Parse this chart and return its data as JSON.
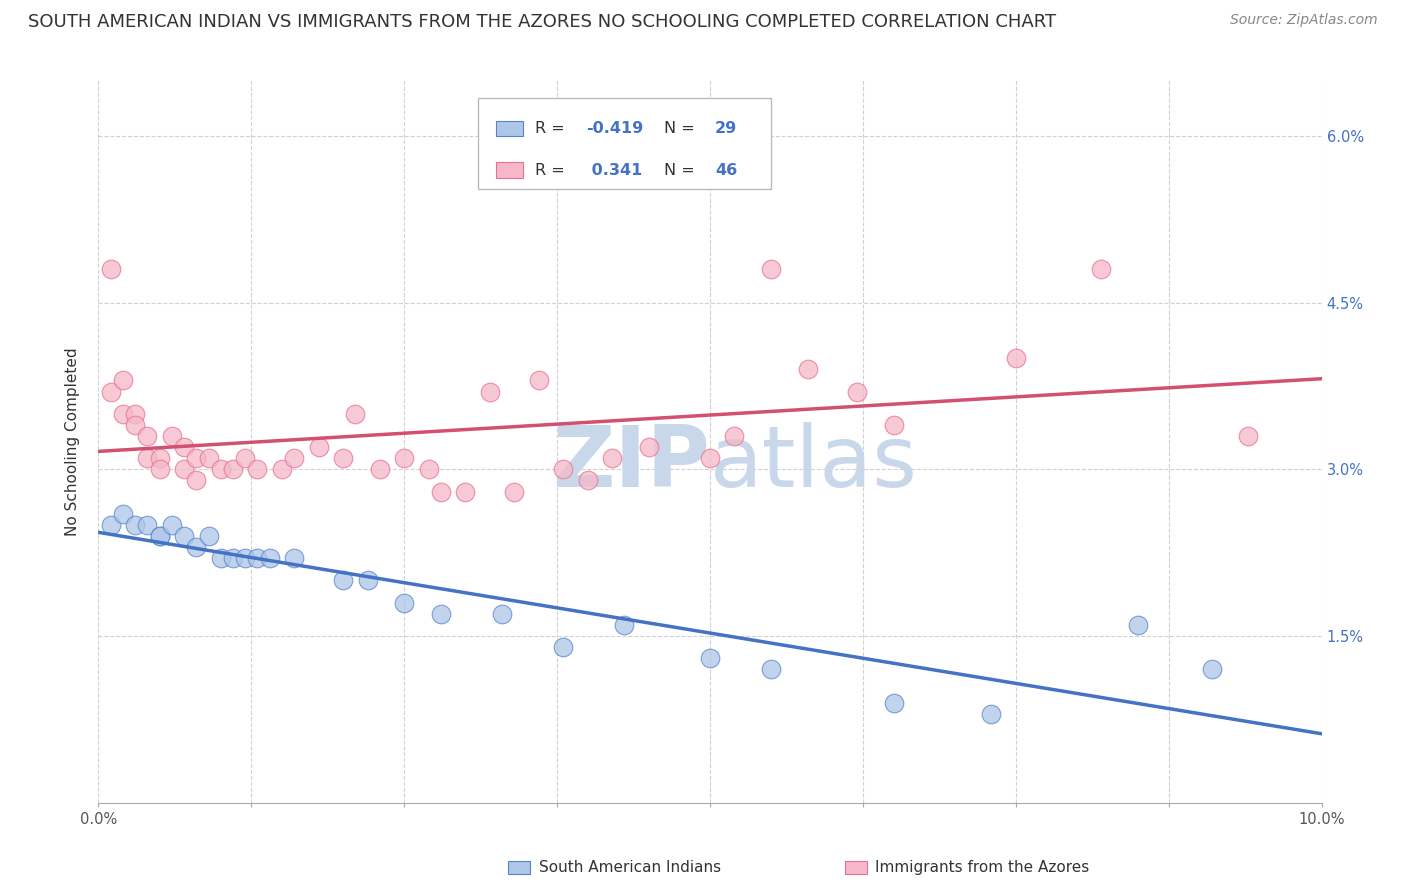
{
  "title": "SOUTH AMERICAN INDIAN VS IMMIGRANTS FROM THE AZORES NO SCHOOLING COMPLETED CORRELATION CHART",
  "source": "Source: ZipAtlas.com",
  "ylabel": "No Schooling Completed",
  "xlim": [
    0.0,
    0.1
  ],
  "ylim": [
    0.0,
    0.065
  ],
  "xticks": [
    0.0,
    0.0125,
    0.025,
    0.0375,
    0.05,
    0.0625,
    0.075,
    0.0875,
    0.1
  ],
  "yticks": [
    0.0,
    0.015,
    0.03,
    0.045,
    0.06
  ],
  "blue_R": -0.419,
  "blue_N": 29,
  "pink_R": 0.341,
  "pink_N": 46,
  "blue_fill": "#aec6e8",
  "pink_fill": "#f4b8c8",
  "blue_edge": "#5585c8",
  "pink_edge": "#e87090",
  "blue_line_color": "#4472c4",
  "pink_line_color": "#d45070",
  "watermark_color": "#c8d8ea",
  "title_fontsize": 13,
  "source_fontsize": 10,
  "ylabel_fontsize": 11,
  "tick_fontsize": 10.5,
  "dot_alpha": 0.75,
  "line_width": 2.5,
  "background_color": "#ffffff",
  "blue_points_x": [
    0.001,
    0.002,
    0.003,
    0.004,
    0.005,
    0.005,
    0.006,
    0.007,
    0.008,
    0.009,
    0.01,
    0.011,
    0.012,
    0.013,
    0.014,
    0.016,
    0.02,
    0.022,
    0.025,
    0.028,
    0.033,
    0.038,
    0.043,
    0.05,
    0.055,
    0.065,
    0.073,
    0.085,
    0.091
  ],
  "blue_points_y": [
    0.025,
    0.026,
    0.025,
    0.025,
    0.024,
    0.024,
    0.025,
    0.024,
    0.023,
    0.024,
    0.022,
    0.022,
    0.022,
    0.022,
    0.022,
    0.022,
    0.02,
    0.02,
    0.018,
    0.017,
    0.017,
    0.014,
    0.016,
    0.013,
    0.012,
    0.009,
    0.008,
    0.016,
    0.012
  ],
  "pink_points_x": [
    0.001,
    0.001,
    0.002,
    0.002,
    0.003,
    0.003,
    0.004,
    0.004,
    0.005,
    0.005,
    0.006,
    0.007,
    0.007,
    0.008,
    0.008,
    0.009,
    0.01,
    0.011,
    0.012,
    0.013,
    0.015,
    0.016,
    0.018,
    0.02,
    0.021,
    0.023,
    0.025,
    0.027,
    0.028,
    0.03,
    0.032,
    0.034,
    0.036,
    0.038,
    0.04,
    0.042,
    0.045,
    0.05,
    0.052,
    0.055,
    0.058,
    0.062,
    0.065,
    0.075,
    0.082,
    0.094
  ],
  "pink_points_y": [
    0.048,
    0.037,
    0.038,
    0.035,
    0.035,
    0.034,
    0.033,
    0.031,
    0.031,
    0.03,
    0.033,
    0.032,
    0.03,
    0.031,
    0.029,
    0.031,
    0.03,
    0.03,
    0.031,
    0.03,
    0.03,
    0.031,
    0.032,
    0.031,
    0.035,
    0.03,
    0.031,
    0.03,
    0.028,
    0.028,
    0.037,
    0.028,
    0.038,
    0.03,
    0.029,
    0.031,
    0.032,
    0.031,
    0.033,
    0.048,
    0.039,
    0.037,
    0.034,
    0.04,
    0.048,
    0.033
  ]
}
